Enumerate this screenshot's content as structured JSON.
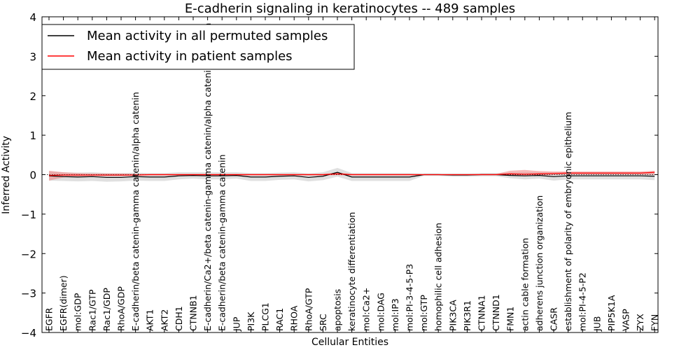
{
  "chart_data": {
    "type": "line",
    "title": "E-cadherin signaling in keratinocytes -- 489 samples",
    "xlabel": "Cellular Entities",
    "ylabel": "Inferred Activity",
    "ylim": [
      -4,
      4
    ],
    "yticks": [
      -4,
      -3,
      -2,
      -1,
      0,
      1,
      2,
      3,
      4
    ],
    "ytick_labels": [
      "−4",
      "−3",
      "−2",
      "−1",
      "0",
      "1",
      "2",
      "3",
      "4"
    ],
    "legend_position": "top-left",
    "categories": [
      "EGFR",
      "EGFR(dimer)",
      "mol:GDP",
      "Rac1/GTP",
      "Rac1/GDP",
      "RhoA/GDP",
      "E-cadherin/beta catenin-gamma catenin/alpha catenin",
      "AKT1",
      "AKT2",
      "CDH1",
      "CTNNB1",
      "E-cadherin/Ca2+/beta catenin-gamma catenin/alpha catenin/p120 ctn",
      "E-cadherin/beta catenin-gamma catenin",
      "JUP",
      "PI3K",
      "PLCG1",
      "RAC1",
      "RHOA",
      "RhoA/GTP",
      "SRC",
      "apoptosis",
      "keratinocyte differentiation",
      "mol:Ca2+",
      "mol:DAG",
      "mol:IP3",
      "mol:PI-3-4-5-P3",
      "mol:GTP",
      "homophilic cell adhesion",
      "PIK3CA",
      "PIK3R1",
      "CTNNA1",
      "CTNND1",
      "FMN1",
      "actin cable formation",
      "adherens junction organization",
      "CASR",
      "establishment of polarity of embryonic epithelium",
      "mol:PI-4-5-P2",
      "JUB",
      "PIP5K1A",
      "VASP",
      "ZYX",
      "FYN"
    ],
    "series": [
      {
        "name": "Mean activity in all permuted samples",
        "color": "#000000",
        "band_color": "#cccccc",
        "values": [
          -0.03,
          -0.05,
          -0.06,
          -0.05,
          -0.07,
          -0.07,
          -0.05,
          -0.06,
          -0.06,
          -0.03,
          -0.02,
          -0.03,
          -0.03,
          -0.02,
          -0.06,
          -0.06,
          -0.04,
          -0.03,
          -0.07,
          -0.04,
          0.06,
          -0.06,
          -0.06,
          -0.06,
          -0.06,
          -0.06,
          0.0,
          0.0,
          -0.01,
          -0.01,
          0.0,
          0.0,
          -0.02,
          -0.03,
          -0.02,
          -0.05,
          -0.03,
          -0.03,
          -0.03,
          -0.03,
          -0.03,
          -0.03,
          -0.04
        ],
        "lower": [
          -0.15,
          -0.16,
          -0.17,
          -0.16,
          -0.18,
          -0.17,
          -0.15,
          -0.16,
          -0.16,
          -0.12,
          -0.1,
          -0.12,
          -0.12,
          -0.1,
          -0.16,
          -0.16,
          -0.13,
          -0.12,
          -0.17,
          -0.14,
          -0.05,
          -0.16,
          -0.16,
          -0.16,
          -0.16,
          -0.16,
          -0.03,
          -0.03,
          -0.05,
          -0.05,
          -0.04,
          -0.04,
          -0.09,
          -0.12,
          -0.1,
          -0.15,
          -0.12,
          -0.12,
          -0.12,
          -0.12,
          -0.12,
          -0.12,
          -0.14
        ],
        "upper": [
          0.08,
          0.06,
          0.05,
          0.06,
          0.04,
          0.04,
          0.05,
          0.04,
          0.04,
          0.06,
          0.06,
          0.06,
          0.06,
          0.06,
          0.04,
          0.04,
          0.05,
          0.06,
          0.03,
          0.06,
          0.17,
          0.04,
          0.04,
          0.04,
          0.04,
          0.04,
          0.03,
          0.03,
          0.03,
          0.03,
          0.04,
          0.04,
          0.05,
          0.06,
          0.06,
          0.05,
          0.06,
          0.06,
          0.06,
          0.06,
          0.06,
          0.06,
          0.06
        ]
      },
      {
        "name": "Mean activity in patient samples",
        "color": "#ff0000",
        "band_color": "#f08080",
        "values": [
          -0.02,
          -0.01,
          -0.01,
          -0.01,
          -0.01,
          -0.01,
          -0.01,
          0.0,
          0.0,
          0.0,
          0.0,
          0.0,
          0.0,
          0.0,
          0.0,
          0.0,
          0.0,
          0.0,
          0.0,
          0.0,
          0.02,
          0.0,
          0.0,
          0.0,
          0.0,
          0.0,
          0.0,
          0.0,
          0.0,
          0.0,
          0.0,
          0.0,
          0.02,
          0.01,
          0.02,
          0.03,
          0.04,
          0.04,
          0.04,
          0.04,
          0.04,
          0.04,
          0.06
        ],
        "lower": [
          -0.15,
          -0.07,
          -0.05,
          -0.04,
          -0.04,
          -0.04,
          -0.03,
          -0.02,
          -0.02,
          -0.02,
          -0.02,
          -0.02,
          -0.02,
          -0.02,
          -0.02,
          -0.02,
          -0.02,
          -0.02,
          -0.02,
          -0.02,
          -0.01,
          -0.02,
          -0.02,
          -0.02,
          -0.02,
          -0.02,
          -0.01,
          -0.01,
          -0.01,
          -0.01,
          -0.01,
          -0.01,
          -0.02,
          -0.03,
          -0.02,
          -0.01,
          0.0,
          0.0,
          0.0,
          0.0,
          0.0,
          0.0,
          0.0
        ],
        "upper": [
          0.1,
          0.06,
          0.04,
          0.03,
          0.03,
          0.03,
          0.02,
          0.02,
          0.02,
          0.02,
          0.02,
          0.02,
          0.02,
          0.02,
          0.02,
          0.02,
          0.02,
          0.02,
          0.02,
          0.02,
          0.05,
          0.02,
          0.02,
          0.02,
          0.02,
          0.02,
          0.01,
          0.01,
          0.01,
          0.01,
          0.02,
          0.02,
          0.1,
          0.12,
          0.09,
          0.08,
          0.08,
          0.08,
          0.08,
          0.08,
          0.08,
          0.08,
          0.1
        ]
      }
    ]
  }
}
